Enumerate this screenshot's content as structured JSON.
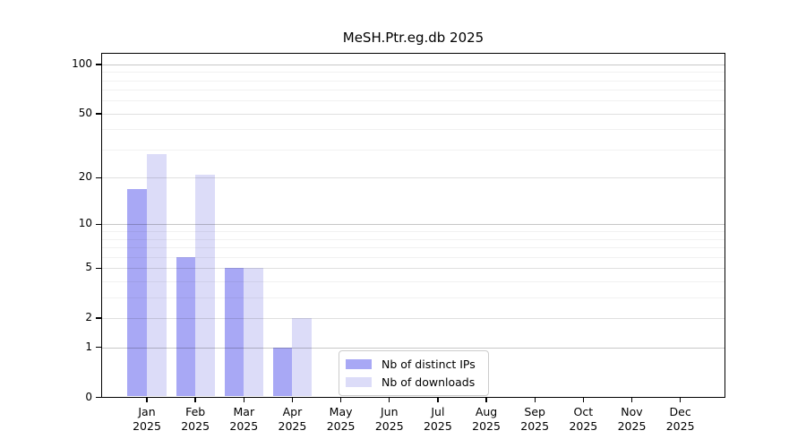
{
  "chart_data": {
    "type": "bar",
    "title": "MeSH.Ptr.eg.db 2025",
    "categories": [
      "Jan",
      "Feb",
      "Mar",
      "Apr",
      "May",
      "Jun",
      "Jul",
      "Aug",
      "Sep",
      "Oct",
      "Nov",
      "Dec"
    ],
    "category_year": "2025",
    "series": [
      {
        "name": "Nb of distinct IPs",
        "color": "#a8a8f5",
        "values": [
          17,
          6,
          5,
          1,
          0,
          0,
          0,
          0,
          0,
          0,
          0,
          0
        ]
      },
      {
        "name": "Nb of downloads",
        "color": "#dcdcf8",
        "values": [
          28,
          21,
          5,
          2,
          0,
          0,
          0,
          0,
          0,
          0,
          0,
          0
        ]
      }
    ],
    "xlabel": "",
    "ylabel": "",
    "y_axis": {
      "scale": "log10(1+y)",
      "tick_labels": [
        "0",
        "1",
        "2",
        "5",
        "10",
        "20",
        "50",
        "100"
      ],
      "ticks": [
        0,
        1,
        2,
        5,
        10,
        20,
        50,
        100
      ],
      "power_ticks": [
        1,
        10,
        100
      ],
      "minor_gridlines": [
        3,
        4,
        6,
        7,
        8,
        9,
        30,
        40,
        60,
        70,
        80,
        90
      ],
      "ylim": [
        0,
        117
      ],
      "grid": true
    },
    "legend": {
      "position": "inside-bottom-center",
      "entries": [
        "Nb of distinct IPs",
        "Nb of downloads"
      ]
    }
  },
  "colors": {
    "background": "#ffffff",
    "spine": "#000000",
    "text": "#000000",
    "grid_power": "#c7c7c7",
    "grid_labeled": "#e0e0e0",
    "grid_minor": "#f1f1f1",
    "legend_border": "#cccccc",
    "bar_distinct_ips": "#a8a8f5",
    "bar_downloads": "#dcdcf8"
  }
}
